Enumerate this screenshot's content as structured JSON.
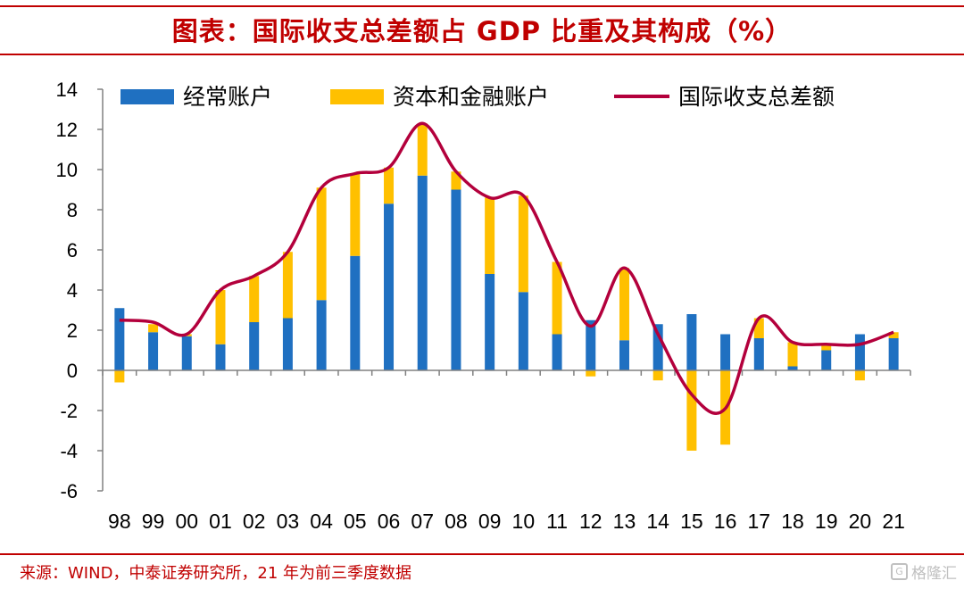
{
  "header": {
    "title": "图表：国际收支总差额占 GDP 比重及其构成（%）"
  },
  "footer": {
    "source": "来源：WIND，中泰证券研究所，21 年为前三季度数据"
  },
  "watermark": {
    "text": "格隆汇",
    "icon": "G",
    "icon_name": "gelonghui-logo-icon"
  },
  "colors": {
    "current_account": "#1f70c1",
    "capital_financial_account": "#ffc000",
    "total": "#b3003c",
    "title": "#c00000"
  },
  "chart_data": {
    "type": "bar",
    "stacked": true,
    "categories": [
      "98",
      "99",
      "00",
      "01",
      "02",
      "03",
      "04",
      "05",
      "06",
      "07",
      "08",
      "09",
      "10",
      "11",
      "12",
      "13",
      "14",
      "15",
      "16",
      "17",
      "18",
      "19",
      "20",
      "21"
    ],
    "series": [
      {
        "name": "经常账户",
        "kind": "bar",
        "values": [
          3.1,
          1.9,
          1.7,
          1.3,
          2.4,
          2.6,
          3.5,
          5.7,
          8.3,
          9.7,
          9.0,
          4.8,
          3.9,
          1.8,
          2.5,
          1.5,
          2.3,
          2.8,
          1.8,
          1.6,
          0.2,
          1.0,
          1.8,
          1.6
        ]
      },
      {
        "name": "资本和金融账户",
        "kind": "bar",
        "values": [
          -0.6,
          0.4,
          0.1,
          2.7,
          2.3,
          3.3,
          5.6,
          4.1,
          1.8,
          2.6,
          0.9,
          3.8,
          4.8,
          3.6,
          -0.3,
          3.6,
          -0.5,
          -4.0,
          -3.7,
          1.0,
          1.2,
          0.3,
          -0.5,
          0.3
        ]
      },
      {
        "name": "国际收支总差额",
        "kind": "line",
        "values": [
          2.5,
          2.4,
          1.8,
          4.0,
          4.7,
          5.9,
          9.1,
          9.8,
          10.1,
          12.3,
          9.9,
          8.6,
          8.7,
          5.4,
          2.2,
          5.1,
          1.8,
          -1.2,
          -1.9,
          2.6,
          1.4,
          1.3,
          1.3,
          1.9
        ]
      }
    ],
    "ylim": [
      -6,
      14
    ],
    "yticks": [
      -6,
      -4,
      -2,
      0,
      2,
      4,
      6,
      8,
      10,
      12,
      14
    ],
    "legend": "top",
    "grid": false
  }
}
